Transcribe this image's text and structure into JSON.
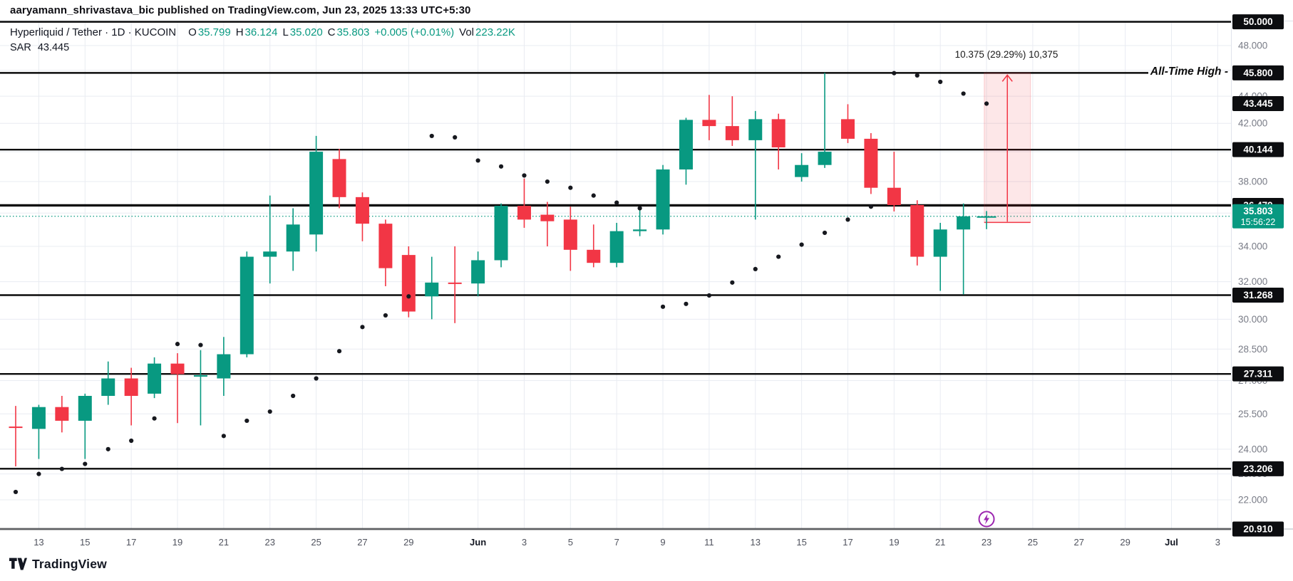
{
  "header": {
    "published_line": "aaryamann_shrivastava_bic published on TradingView.com, Jun 23, 2025 13:33 UTC+5:30"
  },
  "legend": {
    "symbol": "Hyperliquid / Tether · 1D · KUCOIN",
    "o_label": "O",
    "o_value": "35.799",
    "h_label": "H",
    "h_value": "36.124",
    "l_label": "L",
    "l_value": "35.020",
    "c_label": "C",
    "c_value": "35.803",
    "change_value": "+0.005 (+0.01%)",
    "vol_label": "Vol",
    "vol_value": "223.22K",
    "indicator_label": "SAR",
    "indicator_value": "43.445"
  },
  "annotations": {
    "ath_label": "All-Time High -",
    "projection_label": "10.375 (29.29%) 10,375"
  },
  "footer": {
    "logo_text": "TradingView"
  },
  "chart_data": {
    "type": "candlestick",
    "title": "Hyperliquid / Tether · 1D · KUCOIN",
    "y_scale": "log",
    "ylim": [
      20.5,
      50.5
    ],
    "grid": true,
    "dates": [
      "May 12",
      "May 13",
      "May 14",
      "May 15",
      "May 16",
      "May 17",
      "May 18",
      "May 19",
      "May 20",
      "May 21",
      "May 22",
      "May 23",
      "May 24",
      "May 25",
      "May 26",
      "May 27",
      "May 28",
      "May 29",
      "May 30",
      "May 31",
      "Jun 1",
      "Jun 2",
      "Jun 3",
      "Jun 4",
      "Jun 5",
      "Jun 6",
      "Jun 7",
      "Jun 8",
      "Jun 9",
      "Jun 10",
      "Jun 11",
      "Jun 12",
      "Jun 13",
      "Jun 14",
      "Jun 15",
      "Jun 16",
      "Jun 17",
      "Jun 18",
      "Jun 19",
      "Jun 20",
      "Jun 21",
      "Jun 22",
      "Jun 23"
    ],
    "candles": [
      [
        24.95,
        25.85,
        23.3,
        24.9
      ],
      [
        24.85,
        25.9,
        23.6,
        25.8
      ],
      [
        25.8,
        26.3,
        24.7,
        25.2
      ],
      [
        25.2,
        26.4,
        23.6,
        26.3
      ],
      [
        26.3,
        27.9,
        25.9,
        27.1
      ],
      [
        27.1,
        27.6,
        25.0,
        26.3
      ],
      [
        26.4,
        28.1,
        26.2,
        27.8
      ],
      [
        27.8,
        28.3,
        25.1,
        27.3
      ],
      [
        27.2,
        28.45,
        25.0,
        27.25
      ],
      [
        27.1,
        29.1,
        26.3,
        28.25
      ],
      [
        28.25,
        33.7,
        28.1,
        33.4
      ],
      [
        33.4,
        37.1,
        31.9,
        33.7
      ],
      [
        33.7,
        36.3,
        32.6,
        35.3
      ],
      [
        34.7,
        41.1,
        33.7,
        40.0
      ],
      [
        39.5,
        40.2,
        36.3,
        37.0
      ],
      [
        37.0,
        37.3,
        34.3,
        35.35
      ],
      [
        35.35,
        35.6,
        31.75,
        32.75
      ],
      [
        33.5,
        34.0,
        30.1,
        30.4
      ],
      [
        31.2,
        33.4,
        30.0,
        31.95
      ],
      [
        31.95,
        34.0,
        29.8,
        31.9
      ],
      [
        31.9,
        33.7,
        31.2,
        33.2
      ],
      [
        33.2,
        36.6,
        32.8,
        36.45
      ],
      [
        36.45,
        38.2,
        35.1,
        35.6
      ],
      [
        35.9,
        36.7,
        34.0,
        35.5
      ],
      [
        35.6,
        36.4,
        32.6,
        33.8
      ],
      [
        33.8,
        35.3,
        32.8,
        33.05
      ],
      [
        33.05,
        35.4,
        32.8,
        34.9
      ],
      [
        34.9,
        36.3,
        34.6,
        35.0
      ],
      [
        35.0,
        39.1,
        34.7,
        38.8
      ],
      [
        38.8,
        42.4,
        37.8,
        42.25
      ],
      [
        42.25,
        44.1,
        40.8,
        41.8
      ],
      [
        41.8,
        44.0,
        40.4,
        40.8
      ],
      [
        40.8,
        42.9,
        35.6,
        42.3
      ],
      [
        42.3,
        42.7,
        38.8,
        40.3
      ],
      [
        38.3,
        39.9,
        38.0,
        39.1
      ],
      [
        39.1,
        45.8,
        38.9,
        40.0
      ],
      [
        42.3,
        43.4,
        40.6,
        40.9
      ],
      [
        40.9,
        41.3,
        37.2,
        37.6
      ],
      [
        37.6,
        40.0,
        36.1,
        36.5
      ],
      [
        36.5,
        36.8,
        32.9,
        33.4
      ],
      [
        33.4,
        35.4,
        31.5,
        35.0
      ],
      [
        35.0,
        36.6,
        31.3,
        35.8
      ],
      [
        35.799,
        36.124,
        35.02,
        35.803
      ]
    ],
    "sar": [
      22.3,
      23.0,
      23.2,
      23.4,
      24.0,
      24.35,
      25.3,
      28.75,
      28.7,
      24.55,
      25.2,
      25.6,
      26.3,
      27.1,
      28.4,
      29.6,
      30.2,
      31.2,
      41.1,
      41.0,
      39.4,
      39.0,
      38.4,
      38.0,
      37.6,
      37.1,
      36.65,
      36.3,
      30.65,
      30.8,
      31.25,
      31.95,
      32.7,
      33.4,
      34.1,
      34.8,
      35.6,
      36.4,
      45.78,
      45.6,
      45.1,
      44.2,
      43.445
    ],
    "sar_last": {
      "value": 43.445,
      "label": "43.445"
    },
    "current_price": {
      "value": 35.803,
      "label": "35.803",
      "countdown": "15:56:22"
    },
    "level_lines": [
      {
        "price": 50.0,
        "label": "50.000"
      },
      {
        "price": 45.8,
        "label": "45.800",
        "annotation": "All-Time High -"
      },
      {
        "price": 40.144,
        "label": "40.144"
      },
      {
        "price": 36.479,
        "label": "36.479",
        "thick": true
      },
      {
        "price": 31.268,
        "label": "31.268"
      },
      {
        "price": 27.311,
        "label": "27.311"
      },
      {
        "price": 23.206,
        "label": "23.206"
      },
      {
        "price": 20.91,
        "label": "20.910"
      }
    ],
    "y_axis_labels": [
      {
        "p": 48,
        "t": "48.000"
      },
      {
        "p": 46,
        "t": "46.000"
      },
      {
        "p": 44,
        "t": "44.000"
      },
      {
        "p": 42,
        "t": "42.000"
      },
      {
        "p": 40,
        "t": "40.000"
      },
      {
        "p": 38,
        "t": "38.000"
      },
      {
        "p": 36,
        "t": "36.000"
      },
      {
        "p": 34,
        "t": "34.000"
      },
      {
        "p": 32,
        "t": "32.000"
      },
      {
        "p": 30,
        "t": "30.000"
      },
      {
        "p": 28.5,
        "t": "28.500"
      },
      {
        "p": 27,
        "t": "27.000"
      },
      {
        "p": 25.5,
        "t": "25.500"
      },
      {
        "p": 24,
        "t": "24.000"
      },
      {
        "p": 23,
        "t": "23.000"
      },
      {
        "p": 22,
        "t": "22.000"
      },
      {
        "p": 21,
        "t": "21.000"
      }
    ],
    "grid_prices": [
      48,
      46,
      44,
      42,
      40,
      38,
      36,
      34,
      32,
      30,
      28.5,
      27,
      25.5,
      24,
      23,
      22
    ],
    "x_ticks": [
      {
        "d": 1,
        "t": "13"
      },
      {
        "d": 3,
        "t": "15"
      },
      {
        "d": 5,
        "t": "17"
      },
      {
        "d": 7,
        "t": "19"
      },
      {
        "d": 9,
        "t": "21"
      },
      {
        "d": 11,
        "t": "23"
      },
      {
        "d": 13,
        "t": "25"
      },
      {
        "d": 15,
        "t": "27"
      },
      {
        "d": 17,
        "t": "29"
      },
      {
        "d": 20,
        "t": "Jun",
        "bold": true
      },
      {
        "d": 22,
        "t": "3"
      },
      {
        "d": 24,
        "t": "5"
      },
      {
        "d": 26,
        "t": "7"
      },
      {
        "d": 28,
        "t": "9"
      },
      {
        "d": 30,
        "t": "11"
      },
      {
        "d": 32,
        "t": "13"
      },
      {
        "d": 34,
        "t": "15"
      },
      {
        "d": 36,
        "t": "17"
      },
      {
        "d": 38,
        "t": "19"
      },
      {
        "d": 40,
        "t": "21"
      },
      {
        "d": 42,
        "t": "23"
      },
      {
        "d": 44,
        "t": "25"
      },
      {
        "d": 46,
        "t": "27"
      },
      {
        "d": 48,
        "t": "29"
      },
      {
        "d": 50,
        "t": "Jul",
        "bold": true
      },
      {
        "d": 52,
        "t": "3"
      }
    ],
    "projection": {
      "from_day": 41.9,
      "to_day": 43.9,
      "top_price": 45.8,
      "bottom_price": 35.425,
      "label": "10.375 (29.29%) 10,375"
    },
    "event_marker_day": 42,
    "colors": {
      "up": "#089981",
      "down": "#F23645",
      "level_line": "#0b0b0b",
      "grid": "#e9ecf2",
      "axis_text": "#787b86",
      "time_text": "#50535e",
      "badge_bg": "#0c0d10",
      "badge_text": "#ffffff",
      "current_badge_bg": "#089981",
      "sar_dot": "#16181e",
      "projection_fill": "rgba(242,54,69,0.12)",
      "projection_stroke": "#F23645",
      "event_purple": "#9C27B0",
      "price_line": "#089981"
    }
  }
}
